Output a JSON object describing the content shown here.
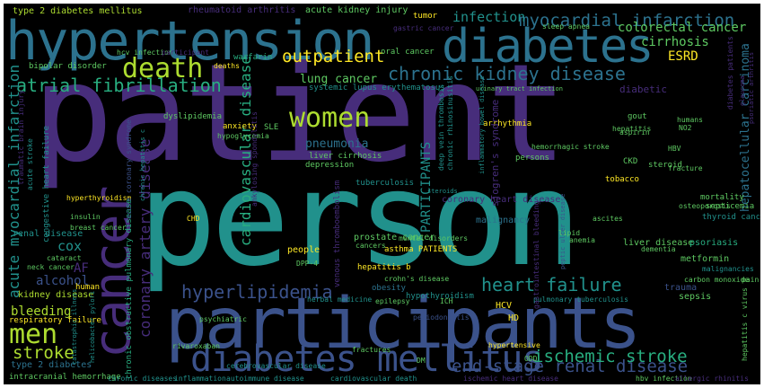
{
  "palette": {
    "background": "#000000",
    "purple": "#472d7b",
    "dark_purple": "#44015a",
    "blue": "#3b528b",
    "teal": "#21918c",
    "dark_teal": "#2c728e",
    "green": "#28ae80",
    "lime": "#addc30",
    "light_green": "#5ec962",
    "yellow": "#fde725"
  },
  "words": [
    {
      "text": "patient",
      "color": "#472d7b"
    },
    {
      "text": "person",
      "color": "#21918c"
    },
    {
      "text": "participants",
      "color": "#3b528b"
    },
    {
      "text": "hypertension",
      "color": "#2c728e"
    },
    {
      "text": "diabetes",
      "color": "#2c728e"
    },
    {
      "text": "cancer",
      "color": "#472d7b"
    },
    {
      "text": "diabetes mellitus",
      "color": "#3b528b"
    },
    {
      "text": "death",
      "color": "#addc30"
    },
    {
      "text": "women",
      "color": "#addc30"
    },
    {
      "text": "men",
      "color": "#addc30"
    },
    {
      "text": "chronic kidney disease",
      "color": "#2c728e"
    },
    {
      "text": "atrial fibrillation",
      "color": "#28ae80"
    },
    {
      "text": "heart failure",
      "color": "#21918c"
    },
    {
      "text": "myocardial infarction",
      "color": "#2c728e"
    },
    {
      "text": "hyperlipidemia",
      "color": "#3b528b"
    },
    {
      "text": "end-stage renal disease",
      "color": "#3b528b"
    },
    {
      "text": "ischemic stroke",
      "color": "#28ae80"
    },
    {
      "text": "stroke",
      "color": "#addc30"
    },
    {
      "text": "outpatient",
      "color": "#fde725"
    },
    {
      "text": "infection",
      "color": "#21918c"
    },
    {
      "text": "colorectal cancer",
      "color": "#5ec962"
    },
    {
      "text": "cirrhosis",
      "color": "#5ec962"
    },
    {
      "text": "ESRD",
      "color": "#fde725"
    },
    {
      "text": "acute myocardial infarction",
      "color": "#21918c"
    },
    {
      "text": "coronary artery disease",
      "color": "#472d7b"
    },
    {
      "text": "cardiovascular disease",
      "color": "#28ae80"
    },
    {
      "text": "PARTICIPANTS",
      "color": "#21918c"
    },
    {
      "text": "lung cancer",
      "color": "#5ec962"
    },
    {
      "text": "pneumonia",
      "color": "#2c728e"
    },
    {
      "text": "cox",
      "color": "#21918c"
    },
    {
      "text": "AF",
      "color": "#472d7b"
    },
    {
      "text": "alcohol",
      "color": "#3b528b"
    },
    {
      "text": "bleeding",
      "color": "#addc30"
    },
    {
      "text": "type 2 diabetes mellitus",
      "color": "#addc30"
    },
    {
      "text": "rheumatoid arthritis",
      "color": "#472d7b"
    },
    {
      "text": "acute kidney injury",
      "color": "#5ec962"
    },
    {
      "text": "tumor",
      "color": "#fde725"
    },
    {
      "text": "hcv infection",
      "color": "#5ec962"
    },
    {
      "text": "participant",
      "color": "#472d7b"
    },
    {
      "text": "warfarin",
      "color": "#28ae80"
    },
    {
      "text": "bipolar disorder",
      "color": "#5ec962"
    },
    {
      "text": "congestive heart failure",
      "color": "#21918c"
    },
    {
      "text": "diabetic",
      "color": "#472d7b"
    },
    {
      "text": "hepatocellular carcinoma",
      "color": "#2c728e"
    },
    {
      "text": "systemic lupus erythematosus",
      "color": "#21918c"
    },
    {
      "text": "dyslipidemia",
      "color": "#5ec962"
    },
    {
      "text": "gout",
      "color": "#5ec962"
    },
    {
      "text": "arrhythmia",
      "color": "#fde725"
    },
    {
      "text": "persons",
      "color": "#5ec962"
    },
    {
      "text": "liver cirrhosis",
      "color": "#5ec962"
    },
    {
      "text": "depression",
      "color": "#5ec962"
    },
    {
      "text": "tuberculosis",
      "color": "#21918c"
    },
    {
      "text": "venous thromboembolism",
      "color": "#472d7b"
    },
    {
      "text": "prostate cancer",
      "color": "#5ec962"
    },
    {
      "text": "people",
      "color": "#fde725"
    },
    {
      "text": "renal disease",
      "color": "#21918c"
    },
    {
      "text": "kidney disease",
      "color": "#addc30"
    },
    {
      "text": "liver disease",
      "color": "#5ec962"
    },
    {
      "text": "psoriasis",
      "color": "#28ae80"
    },
    {
      "text": "metformin",
      "color": "#5ec962"
    },
    {
      "text": "malignancy",
      "color": "#2c728e"
    },
    {
      "text": "asthma PATIENTS",
      "color": "#fde725"
    },
    {
      "text": "hepatitis b",
      "color": "#fde725"
    },
    {
      "text": "obesity",
      "color": "#2c728e"
    },
    {
      "text": "hypothyroidism",
      "color": "#21918c"
    },
    {
      "text": "HCV",
      "color": "#fde725"
    },
    {
      "text": "HD",
      "color": "#fde725"
    },
    {
      "text": "trauma",
      "color": "#3b528b"
    },
    {
      "text": "sepsis",
      "color": "#5ec962"
    },
    {
      "text": "CKD",
      "color": "#5ec962"
    },
    {
      "text": "steroid",
      "color": "#5ec962"
    },
    {
      "text": "mortality",
      "color": "#5ec962"
    },
    {
      "text": "septicemia",
      "color": "#5ec962"
    },
    {
      "text": "osteoporosis",
      "color": "#5ec962"
    },
    {
      "text": "fracture",
      "color": "#5ec962"
    },
    {
      "text": "tobacco",
      "color": "#fde725"
    },
    {
      "text": "hepatitis",
      "color": "#5ec962"
    },
    {
      "text": "aspirin",
      "color": "#5ec962"
    },
    {
      "text": "HBV",
      "color": "#5ec962"
    },
    {
      "text": "NO2",
      "color": "#5ec962"
    },
    {
      "text": "humans",
      "color": "#5ec962"
    },
    {
      "text": "oral cancer",
      "color": "#5ec962"
    },
    {
      "text": "sleep apnea",
      "color": "#5ec962"
    },
    {
      "text": "gastric cancer",
      "color": "#472d7b"
    },
    {
      "text": "hyperthyroidism",
      "color": "#fde725"
    },
    {
      "text": "insulin",
      "color": "#5ec962"
    },
    {
      "text": "breast cancer",
      "color": "#5ec962"
    },
    {
      "text": "neck cancer",
      "color": "#5ec962"
    },
    {
      "text": "cataract",
      "color": "#5ec962"
    },
    {
      "text": "human",
      "color": "#fde725"
    },
    {
      "text": "respiratory failure",
      "color": "#fde725"
    },
    {
      "text": "type 2 diabetes",
      "color": "#2c728e"
    },
    {
      "text": "intracranial hemorrhage",
      "color": "#5ec962"
    },
    {
      "text": "chronic obstructive pulmonary disease",
      "color": "#28ae80"
    },
    {
      "text": "rivaroxaban",
      "color": "#5ec962"
    },
    {
      "text": "psychiatric",
      "color": "#5ec962"
    },
    {
      "text": "cerebrovascular disease",
      "color": "#21918c"
    },
    {
      "text": "autoimmune disease",
      "color": "#21918c"
    },
    {
      "text": "inflammation",
      "color": "#21918c"
    },
    {
      "text": "chronic diseases",
      "color": "#21918c"
    },
    {
      "text": "cardiovascular death",
      "color": "#21918c"
    },
    {
      "text": "ischemic heart disease",
      "color": "#472d7b"
    },
    {
      "text": "hbv infection",
      "color": "#5ec962"
    },
    {
      "text": "allergic rhinitis",
      "color": "#472d7b"
    },
    {
      "text": "DM",
      "color": "#5ec962"
    },
    {
      "text": "hypertensive",
      "color": "#fde725"
    },
    {
      "text": "periodontitis",
      "color": "#3b528b"
    },
    {
      "text": "fractures",
      "color": "#5ec962"
    },
    {
      "text": "cancers",
      "color": "#5ec962"
    },
    {
      "text": "mental disorders",
      "color": "#5ec962"
    },
    {
      "text": "pulmonary tuberculosis",
      "color": "#21918c"
    },
    {
      "text": "crohn's disease",
      "color": "#5ec962"
    },
    {
      "text": "herbal medicine",
      "color": "#21918c"
    },
    {
      "text": "epilepsy",
      "color": "#5ec962"
    },
    {
      "text": "ICH",
      "color": "#5ec962"
    },
    {
      "text": "hemorrhagic stroke",
      "color": "#5ec962"
    },
    {
      "text": "deep vein thrombosis",
      "color": "#21918c"
    },
    {
      "text": "chronic rhinosinusitis",
      "color": "#21918c"
    },
    {
      "text": "sjogren's syndrome",
      "color": "#472d7b"
    },
    {
      "text": "anxiety",
      "color": "#fde725"
    },
    {
      "text": "SLE",
      "color": "#5ec962"
    },
    {
      "text": "hypoglycemia",
      "color": "#5ec962"
    },
    {
      "text": "ankylosing spondylitis",
      "color": "#472d7b"
    },
    {
      "text": "thyroid cancer",
      "color": "#21918c"
    },
    {
      "text": "ascites",
      "color": "#5ec962"
    },
    {
      "text": "dementia",
      "color": "#5ec962"
    },
    {
      "text": "anemia",
      "color": "#5ec962"
    },
    {
      "text": "lipid",
      "color": "#5ec962"
    },
    {
      "text": "malignancies",
      "color": "#21918c"
    },
    {
      "text": "carbon monoxide",
      "color": "#5ec962"
    },
    {
      "text": "pain",
      "color": "#5ec962"
    },
    {
      "text": "CHD",
      "color": "#fde725"
    },
    {
      "text": "DPP-4",
      "color": "#5ec962"
    },
    {
      "text": "urinary tract infection",
      "color": "#5ec962"
    },
    {
      "text": "chronic hepatitis c",
      "color": "#21918c"
    },
    {
      "text": "inflammatory bowel disease",
      "color": "#21918c"
    },
    {
      "text": "gastrointestinal bleeding",
      "color": "#472d7b"
    },
    {
      "text": "coronary heart disease",
      "color": "#472d7b"
    },
    {
      "text": "acute coronary syndrome",
      "color": "#3b528b"
    },
    {
      "text": "traumatic brain injury",
      "color": "#472d7b"
    },
    {
      "text": "acute stroke",
      "color": "#21918c"
    },
    {
      "text": "diabetes patients",
      "color": "#472d7b"
    },
    {
      "text": "catastrophic illness",
      "color": "#21918c"
    },
    {
      "text": "helicobacter pylori",
      "color": "#21918c"
    },
    {
      "text": "psoriatic arthritis",
      "color": "#472d7b"
    },
    {
      "text": "glaucoma",
      "color": "#472d7b"
    },
    {
      "text": "peptic ulcer disease",
      "color": "#3b528b"
    },
    {
      "text": "hepatitis c virus",
      "color": "#5ec962"
    },
    {
      "text": "steroids",
      "color": "#21918c"
    },
    {
      "text": "deaths",
      "color": "#fde725"
    },
    {
      "text": "ODD",
      "color": "#5ec962"
    }
  ]
}
